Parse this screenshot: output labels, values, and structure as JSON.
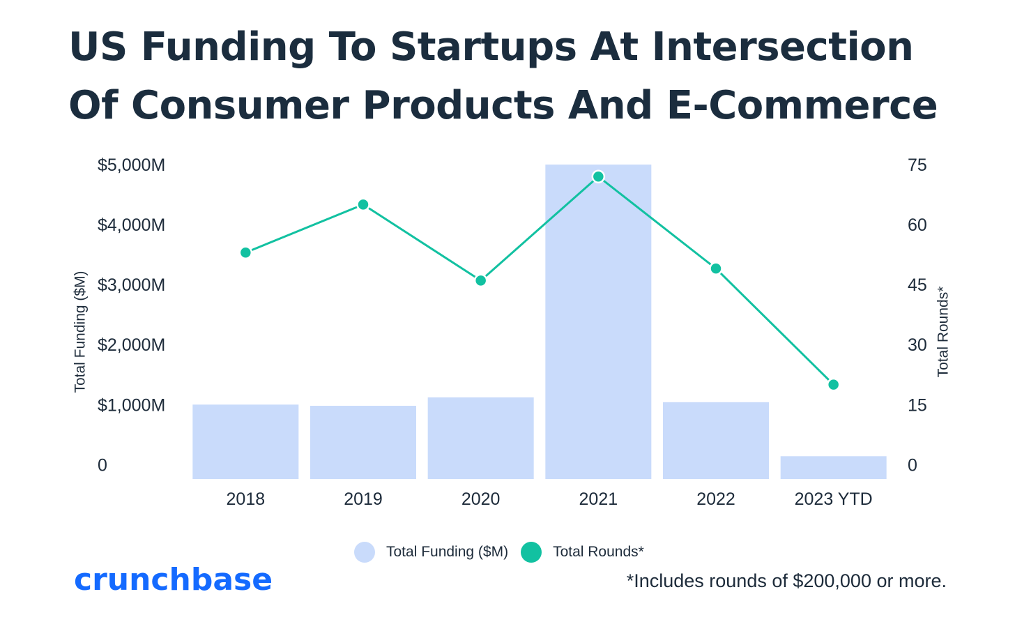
{
  "header": {
    "title_line1": "US Funding To Startups At Intersection",
    "title_line2": "Of Consumer Products And E-Commerce"
  },
  "chart_data": {
    "type": "bar+line",
    "categories": [
      "2018",
      "2019",
      "2020",
      "2021",
      "2022",
      "2023 YTD"
    ],
    "series": [
      {
        "name": "Total Funding ($M)",
        "type": "bar",
        "axis": "left",
        "color": "#c9dbfb",
        "values": [
          1000,
          980,
          1120,
          5000,
          1040,
          140
        ]
      },
      {
        "name": "Total Rounds*",
        "type": "line",
        "axis": "right",
        "color": "#12c1a1",
        "values": [
          53,
          65,
          46,
          72,
          49,
          20
        ]
      }
    ],
    "y_left": {
      "label": "Total Funding ($M)",
      "ticks": [
        "0",
        "$1,000M",
        "$2,000M",
        "$3,000M",
        "$4,000M",
        "$5,000M"
      ],
      "tick_values": [
        0,
        1000,
        2000,
        3000,
        4000,
        5000
      ],
      "ylim": [
        -240,
        5000
      ]
    },
    "y_right": {
      "label": "Total Rounds*",
      "ticks": [
        "0",
        "15",
        "30",
        "45",
        "60",
        "75"
      ],
      "tick_values": [
        0,
        15,
        30,
        45,
        60,
        75
      ],
      "ylim": [
        -3.6,
        75
      ]
    },
    "grid": false,
    "legend_position": "bottom-center"
  },
  "legend": {
    "items": [
      {
        "label": "Total Funding ($M)",
        "color": "#c9dbfb"
      },
      {
        "label": "Total Rounds*",
        "color": "#12c1a1"
      }
    ]
  },
  "footer": {
    "brand": "crunchbase",
    "note": "*Includes rounds of $200,000 or more."
  }
}
